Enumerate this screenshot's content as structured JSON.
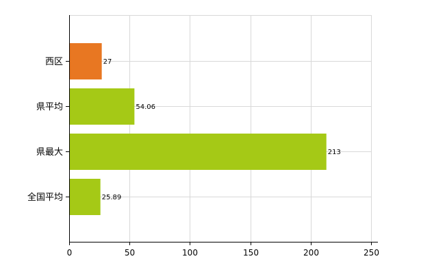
{
  "chart_data": {
    "type": "bar",
    "orientation": "horizontal",
    "categories": [
      "西区",
      "県平均",
      "県最大",
      "全国平均"
    ],
    "values": [
      27,
      54.06,
      213,
      25.89
    ],
    "value_labels": [
      "27",
      "54.06",
      "213",
      "25.89"
    ],
    "bar_colors": [
      "#E87722",
      "#A5C916",
      "#A5C916",
      "#A5C916"
    ],
    "xlim": [
      0,
      250
    ],
    "x_ticks": [
      0,
      50,
      100,
      150,
      200,
      250
    ],
    "x_tick_labels": [
      "0",
      "50",
      "100",
      "150",
      "200",
      "250"
    ],
    "grid": true,
    "title": "",
    "xlabel": "",
    "ylabel": ""
  },
  "colors": {
    "highlight": "#E87722",
    "default": "#A5C916",
    "grid": "#D8D8D8",
    "axis": "#000000"
  }
}
